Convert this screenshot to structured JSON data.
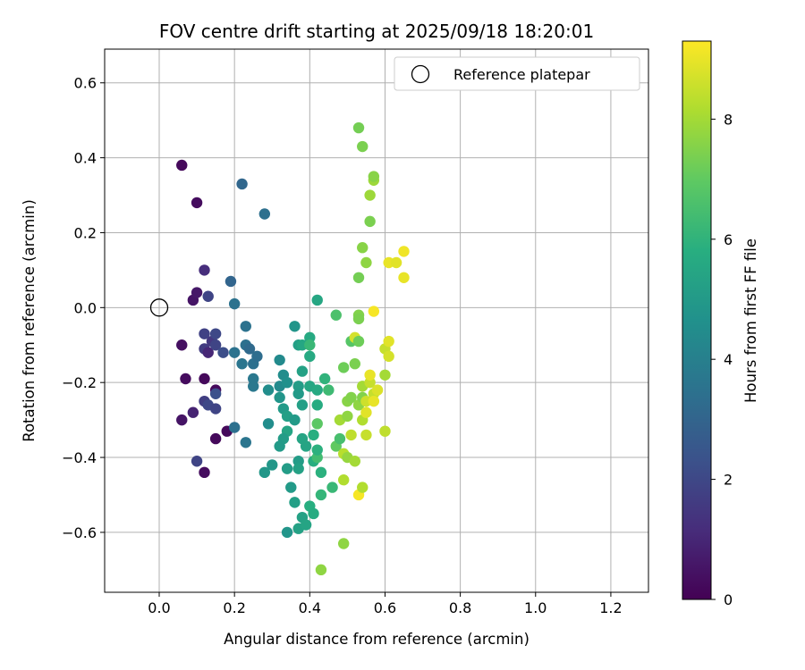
{
  "chart_data": {
    "type": "scatter",
    "title": "FOV centre drift starting at 2025/09/18 18:20:01",
    "xlabel": "Angular distance from reference (arcmin)",
    "ylabel": "Rotation from reference (arcmin)",
    "xlim": [
      -0.145,
      1.3
    ],
    "ylim": [
      -0.76,
      0.69
    ],
    "grid": true,
    "x_ticks": [
      0.0,
      0.2,
      0.4,
      0.6,
      0.8,
      1.0,
      1.2
    ],
    "x_tick_labels": [
      "0.0",
      "0.2",
      "0.4",
      "0.6",
      "0.8",
      "1.0",
      "1.2"
    ],
    "y_ticks": [
      -0.6,
      -0.4,
      -0.2,
      0.0,
      0.2,
      0.4,
      0.6
    ],
    "y_tick_labels": [
      "−0.6",
      "−0.4",
      "−0.2",
      "0.0",
      "0.2",
      "0.4",
      "0.6"
    ],
    "legend": {
      "placement": "top-right",
      "entries": [
        {
          "label": "Reference platepar",
          "marker": "open-circle",
          "x": 0.0,
          "y": 0.0
        }
      ]
    },
    "colorbar": {
      "label": "Hours from first FF file",
      "colormap": "viridis",
      "range": [
        0,
        9.3
      ],
      "ticks": [
        0,
        2,
        4,
        6,
        8
      ],
      "tick_labels": [
        "0",
        "2",
        "4",
        "6",
        "8"
      ]
    },
    "points": [
      [
        0.06,
        0.38,
        0.2
      ],
      [
        0.1,
        0.28,
        0.3
      ],
      [
        0.06,
        -0.1,
        0.4
      ],
      [
        0.07,
        -0.19,
        0.3
      ],
      [
        0.06,
        -0.3,
        0.5
      ],
      [
        0.09,
        -0.28,
        0.9
      ],
      [
        0.1,
        -0.41,
        1.9
      ],
      [
        0.12,
        -0.44,
        0.3
      ],
      [
        0.12,
        -0.19,
        0.2
      ],
      [
        0.15,
        -0.22,
        0.2
      ],
      [
        0.15,
        -0.35,
        0.2
      ],
      [
        0.18,
        -0.33,
        0.2
      ],
      [
        0.09,
        0.02,
        0.5
      ],
      [
        0.1,
        0.04,
        0.6
      ],
      [
        0.12,
        0.1,
        1.2
      ],
      [
        0.13,
        0.03,
        1.9
      ],
      [
        0.12,
        -0.07,
        1.8
      ],
      [
        0.12,
        -0.11,
        1.6
      ],
      [
        0.13,
        -0.12,
        1.0
      ],
      [
        0.14,
        -0.09,
        1.5
      ],
      [
        0.15,
        -0.07,
        2.0
      ],
      [
        0.15,
        -0.1,
        1.9
      ],
      [
        0.17,
        -0.12,
        2.2
      ],
      [
        0.12,
        -0.25,
        1.7
      ],
      [
        0.13,
        -0.26,
        2.0
      ],
      [
        0.15,
        -0.23,
        2.3
      ],
      [
        0.15,
        -0.27,
        1.9
      ],
      [
        0.19,
        0.07,
        3.0
      ],
      [
        0.22,
        0.33,
        3.1
      ],
      [
        0.28,
        0.25,
        3.4
      ],
      [
        0.2,
        0.01,
        3.5
      ],
      [
        0.2,
        -0.12,
        3.5
      ],
      [
        0.22,
        -0.15,
        3.6
      ],
      [
        0.23,
        -0.05,
        3.5
      ],
      [
        0.23,
        -0.1,
        3.4
      ],
      [
        0.24,
        -0.11,
        3.2
      ],
      [
        0.25,
        -0.15,
        3.4
      ],
      [
        0.26,
        -0.13,
        3.3
      ],
      [
        0.25,
        -0.19,
        3.7
      ],
      [
        0.25,
        -0.21,
        3.7
      ],
      [
        0.2,
        -0.32,
        3.4
      ],
      [
        0.23,
        -0.36,
        3.6
      ],
      [
        0.28,
        -0.44,
        4.9
      ],
      [
        0.3,
        -0.42,
        4.9
      ],
      [
        0.29,
        -0.22,
        4.5
      ],
      [
        0.29,
        -0.31,
        4.5
      ],
      [
        0.32,
        -0.14,
        4.4
      ],
      [
        0.32,
        -0.21,
        4.4
      ],
      [
        0.32,
        -0.24,
        4.8
      ],
      [
        0.33,
        -0.18,
        4.5
      ],
      [
        0.34,
        -0.2,
        4.6
      ],
      [
        0.33,
        -0.27,
        5.0
      ],
      [
        0.34,
        -0.29,
        5.2
      ],
      [
        0.34,
        -0.33,
        5.4
      ],
      [
        0.33,
        -0.35,
        5.1
      ],
      [
        0.32,
        -0.37,
        5.0
      ],
      [
        0.34,
        -0.43,
        5.1
      ],
      [
        0.34,
        -0.6,
        4.8
      ],
      [
        0.35,
        -0.48,
        5.0
      ],
      [
        0.36,
        -0.52,
        5.2
      ],
      [
        0.37,
        -0.41,
        5.1
      ],
      [
        0.37,
        -0.43,
        5.3
      ],
      [
        0.37,
        -0.59,
        5.3
      ],
      [
        0.38,
        -0.56,
        5.3
      ],
      [
        0.39,
        -0.58,
        5.4
      ],
      [
        0.36,
        -0.05,
        4.8
      ],
      [
        0.37,
        -0.1,
        5.2
      ],
      [
        0.38,
        -0.1,
        5.5
      ],
      [
        0.38,
        -0.17,
        5.3
      ],
      [
        0.37,
        -0.21,
        5.1
      ],
      [
        0.37,
        -0.23,
        5.0
      ],
      [
        0.38,
        -0.26,
        5.2
      ],
      [
        0.36,
        -0.3,
        5.0
      ],
      [
        0.38,
        -0.35,
        5.4
      ],
      [
        0.39,
        -0.37,
        5.4
      ],
      [
        0.4,
        -0.08,
        5.6
      ],
      [
        0.4,
        -0.13,
        5.6
      ],
      [
        0.4,
        -0.21,
        5.5
      ],
      [
        0.42,
        -0.22,
        5.6
      ],
      [
        0.4,
        -0.1,
        6.2
      ],
      [
        0.42,
        -0.26,
        5.7
      ],
      [
        0.42,
        -0.31,
        6.9
      ],
      [
        0.41,
        -0.34,
        5.8
      ],
      [
        0.41,
        -0.41,
        5.8
      ],
      [
        0.42,
        -0.4,
        6.4
      ],
      [
        0.42,
        -0.38,
        5.9
      ],
      [
        0.43,
        -0.44,
        5.9
      ],
      [
        0.43,
        -0.5,
        6.1
      ],
      [
        0.4,
        -0.53,
        5.8
      ],
      [
        0.41,
        -0.55,
        5.7
      ],
      [
        0.43,
        -0.7,
        7.7
      ],
      [
        0.42,
        0.02,
        5.5
      ],
      [
        0.44,
        -0.19,
        6.0
      ],
      [
        0.45,
        -0.22,
        6.3
      ],
      [
        0.46,
        -0.48,
        6.2
      ],
      [
        0.47,
        -0.37,
        7.0
      ],
      [
        0.47,
        -0.02,
        6.6
      ],
      [
        0.48,
        -0.3,
        8.0
      ],
      [
        0.48,
        -0.35,
        6.5
      ],
      [
        0.49,
        -0.39,
        8.3
      ],
      [
        0.5,
        -0.4,
        7.8
      ],
      [
        0.49,
        -0.46,
        8.2
      ],
      [
        0.49,
        -0.63,
        7.7
      ],
      [
        0.49,
        -0.16,
        7.2
      ],
      [
        0.5,
        -0.29,
        7.7
      ],
      [
        0.5,
        -0.25,
        7.6
      ],
      [
        0.51,
        -0.24,
        7.5
      ],
      [
        0.51,
        -0.34,
        8.4
      ],
      [
        0.52,
        -0.41,
        8.0
      ],
      [
        0.51,
        -0.09,
        6.8
      ],
      [
        0.52,
        -0.08,
        8.7
      ],
      [
        0.52,
        -0.15,
        7.4
      ],
      [
        0.53,
        0.08,
        7.3
      ],
      [
        0.53,
        -0.02,
        7.5
      ],
      [
        0.53,
        -0.03,
        7.4
      ],
      [
        0.53,
        -0.09,
        7.2
      ],
      [
        0.53,
        -0.26,
        7.7
      ],
      [
        0.54,
        -0.24,
        7.5
      ],
      [
        0.54,
        -0.3,
        8.2
      ],
      [
        0.53,
        -0.5,
        9.2
      ],
      [
        0.54,
        -0.48,
        8.2
      ],
      [
        0.54,
        -0.21,
        8.0
      ],
      [
        0.55,
        -0.25,
        8.6
      ],
      [
        0.55,
        -0.34,
        8.5
      ],
      [
        0.55,
        -0.28,
        8.9
      ],
      [
        0.53,
        0.48,
        7.3
      ],
      [
        0.54,
        0.43,
        7.4
      ],
      [
        0.54,
        0.16,
        7.6
      ],
      [
        0.55,
        0.12,
        7.7
      ],
      [
        0.56,
        0.3,
        7.9
      ],
      [
        0.57,
        0.34,
        7.9
      ],
      [
        0.57,
        0.35,
        7.6
      ],
      [
        0.56,
        0.23,
        7.4
      ],
      [
        0.56,
        -0.2,
        8.5
      ],
      [
        0.56,
        -0.18,
        9.0
      ],
      [
        0.57,
        -0.01,
        9.2
      ],
      [
        0.57,
        -0.23,
        8.5
      ],
      [
        0.57,
        -0.25,
        9.0
      ],
      [
        0.58,
        -0.22,
        8.8
      ],
      [
        0.6,
        -0.33,
        8.4
      ],
      [
        0.6,
        -0.18,
        8.0
      ],
      [
        0.6,
        -0.11,
        8.5
      ],
      [
        0.61,
        -0.09,
        8.9
      ],
      [
        0.61,
        -0.13,
        8.7
      ],
      [
        0.61,
        0.12,
        9.0
      ],
      [
        0.63,
        0.12,
        8.9
      ],
      [
        0.65,
        0.08,
        9.0
      ],
      [
        0.65,
        0.15,
        9.1
      ]
    ]
  }
}
